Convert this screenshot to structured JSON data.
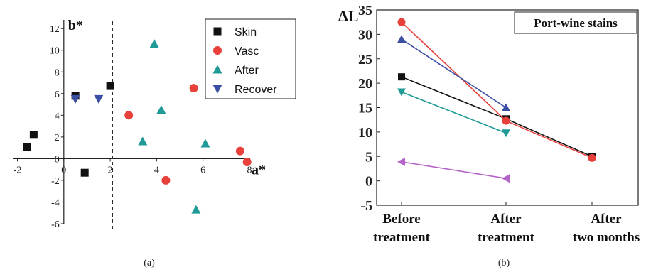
{
  "chart_data": [
    {
      "type": "scatter",
      "panel_label": "(a)",
      "xlabel": "a*",
      "ylabel": "b*",
      "xlim": [
        -2.2,
        8.4
      ],
      "ylim": [
        -6.2,
        12.8
      ],
      "x_ticks": [
        -2,
        0,
        2,
        4,
        6,
        8
      ],
      "y_ticks": [
        -6,
        -4,
        -2,
        0,
        2,
        4,
        6,
        8,
        10,
        12
      ],
      "vline_x": 2.1,
      "legend_position": "top-right",
      "series": [
        {
          "name": "Skin",
          "marker": "square",
          "color": "#111111",
          "points": [
            [
              -1.6,
              1.1
            ],
            [
              -1.3,
              2.2
            ],
            [
              0.5,
              5.8
            ],
            [
              0.9,
              -1.3
            ],
            [
              2.0,
              6.7
            ]
          ]
        },
        {
          "name": "Vasc",
          "marker": "circle",
          "color": "#e8403a",
          "points": [
            [
              2.8,
              4.0
            ],
            [
              4.4,
              -2.0
            ],
            [
              5.6,
              6.5
            ],
            [
              7.6,
              0.7
            ],
            [
              7.9,
              -0.3
            ]
          ]
        },
        {
          "name": "After",
          "marker": "triangle-up",
          "color": "#1f9a96",
          "points": [
            [
              3.4,
              1.6
            ],
            [
              3.9,
              10.6
            ],
            [
              4.2,
              4.5
            ],
            [
              5.7,
              -4.7
            ],
            [
              6.1,
              1.4
            ]
          ]
        },
        {
          "name": "Recover",
          "marker": "triangle-down",
          "color": "#3a4ea3",
          "points": [
            [
              0.5,
              5.5
            ],
            [
              1.5,
              5.5
            ]
          ]
        }
      ]
    },
    {
      "type": "line",
      "panel_label": "(b)",
      "title": "Port-wine stains",
      "ylabel": "ΔL",
      "ylim": [
        -5,
        35
      ],
      "y_ticks": [
        -5,
        0,
        5,
        10,
        15,
        20,
        25,
        30,
        35
      ],
      "categories": [
        [
          "Before",
          "treatment"
        ],
        [
          "After",
          "treatment"
        ],
        [
          "After",
          "two months"
        ]
      ],
      "series": [
        {
          "marker": "square",
          "color": "#111111",
          "values": [
            21.3,
            12.7,
            5.0
          ]
        },
        {
          "marker": "circle",
          "color": "#e8403a",
          "values": [
            32.5,
            12.3,
            4.7
          ]
        },
        {
          "marker": "triangle-up",
          "color": "#3a4ea3",
          "values": [
            29.0,
            15.0,
            null
          ]
        },
        {
          "marker": "triangle-down",
          "color": "#1f9a96",
          "values": [
            18.2,
            9.8,
            null
          ]
        },
        {
          "marker": "triangle-left",
          "color": "#b565c9",
          "values": [
            3.9,
            0.5,
            null
          ]
        }
      ]
    }
  ]
}
